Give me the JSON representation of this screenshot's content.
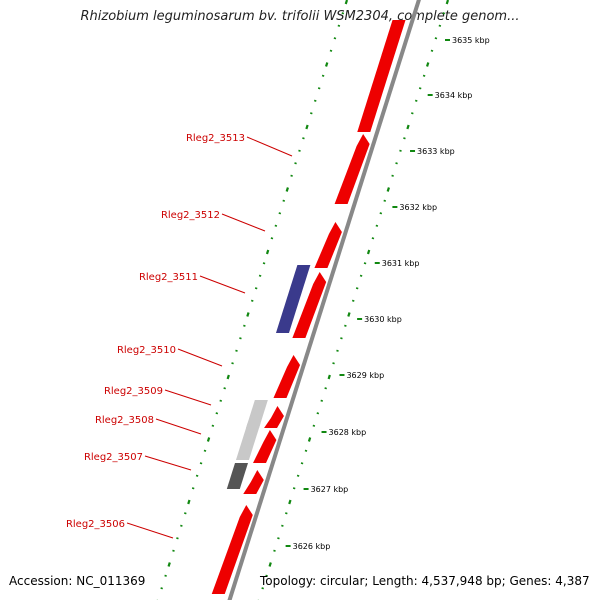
{
  "title": "Rhizobium leguminosarum bv. trifolii WSM2304, complete genom...",
  "footer": {
    "accession": "Accession: NC_011369",
    "topology": "Topology: circular; Length: 4,537,948 bp; Genes: 4,387"
  },
  "colors": {
    "forward_gene": "#ee0000",
    "reverse_gene": "#3a3a8c",
    "light_gray_gene": "#c8c8c8",
    "dark_gray_gene": "#555555",
    "backbone": "#888888",
    "gc_dots": "#118811",
    "label": "#cc0000"
  },
  "ticks": [
    {
      "kbp": 3635,
      "label": "3635 kbp"
    },
    {
      "kbp": 3634,
      "label": "3634 kbp"
    },
    {
      "kbp": 3633,
      "label": "3633 kbp"
    },
    {
      "kbp": 3632,
      "label": "3632 kbp"
    },
    {
      "kbp": 3631,
      "label": "3631 kbp"
    },
    {
      "kbp": 3630,
      "label": "3630 kbp"
    },
    {
      "kbp": 3629,
      "label": "3629 kbp"
    },
    {
      "kbp": 3628,
      "label": "3628 kbp"
    },
    {
      "kbp": 3627,
      "label": "3627 kbp"
    },
    {
      "kbp": 3626,
      "label": "3626 kbp"
    }
  ],
  "gene_labels": [
    "Rleg2_3513",
    "Rleg2_3512",
    "Rleg2_3511",
    "Rleg2_3510",
    "Rleg2_3509",
    "Rleg2_3508",
    "Rleg2_3507",
    "Rleg2_3506"
  ]
}
